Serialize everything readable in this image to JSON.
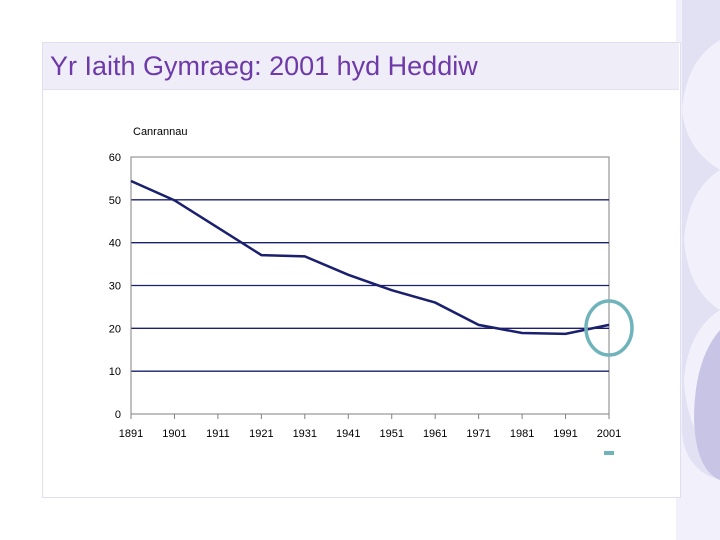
{
  "slide": {
    "title": "Yr Iaith Gymraeg: 2001 hyd Heddiw"
  },
  "colors": {
    "title": "#6e39a8",
    "line": "#1a1f6e",
    "highlight_circle": "#6fb3bb",
    "deco_panel": "#c7c4e6"
  },
  "chart_data": {
    "type": "line",
    "ylabel": "Canrannau",
    "xlabel": "",
    "title": "",
    "x": [
      1891,
      1901,
      1911,
      1921,
      1931,
      1941,
      1951,
      1961,
      1971,
      1981,
      1991,
      2001
    ],
    "series": [
      {
        "values": [
          54.4,
          49.9,
          43.5,
          37.1,
          36.8,
          32.5,
          28.9,
          26.0,
          20.8,
          18.9,
          18.7,
          20.8
        ]
      }
    ],
    "ylim": [
      0,
      60
    ],
    "yticks": [
      0,
      10,
      20,
      30,
      40,
      50,
      60
    ],
    "xticks": [
      "1891",
      "1901",
      "1911",
      "1921",
      "1931",
      "1941",
      "1951",
      "1961",
      "1971",
      "1981",
      "1991",
      "2001"
    ],
    "grid": "horizontal",
    "highlight": "2001"
  }
}
